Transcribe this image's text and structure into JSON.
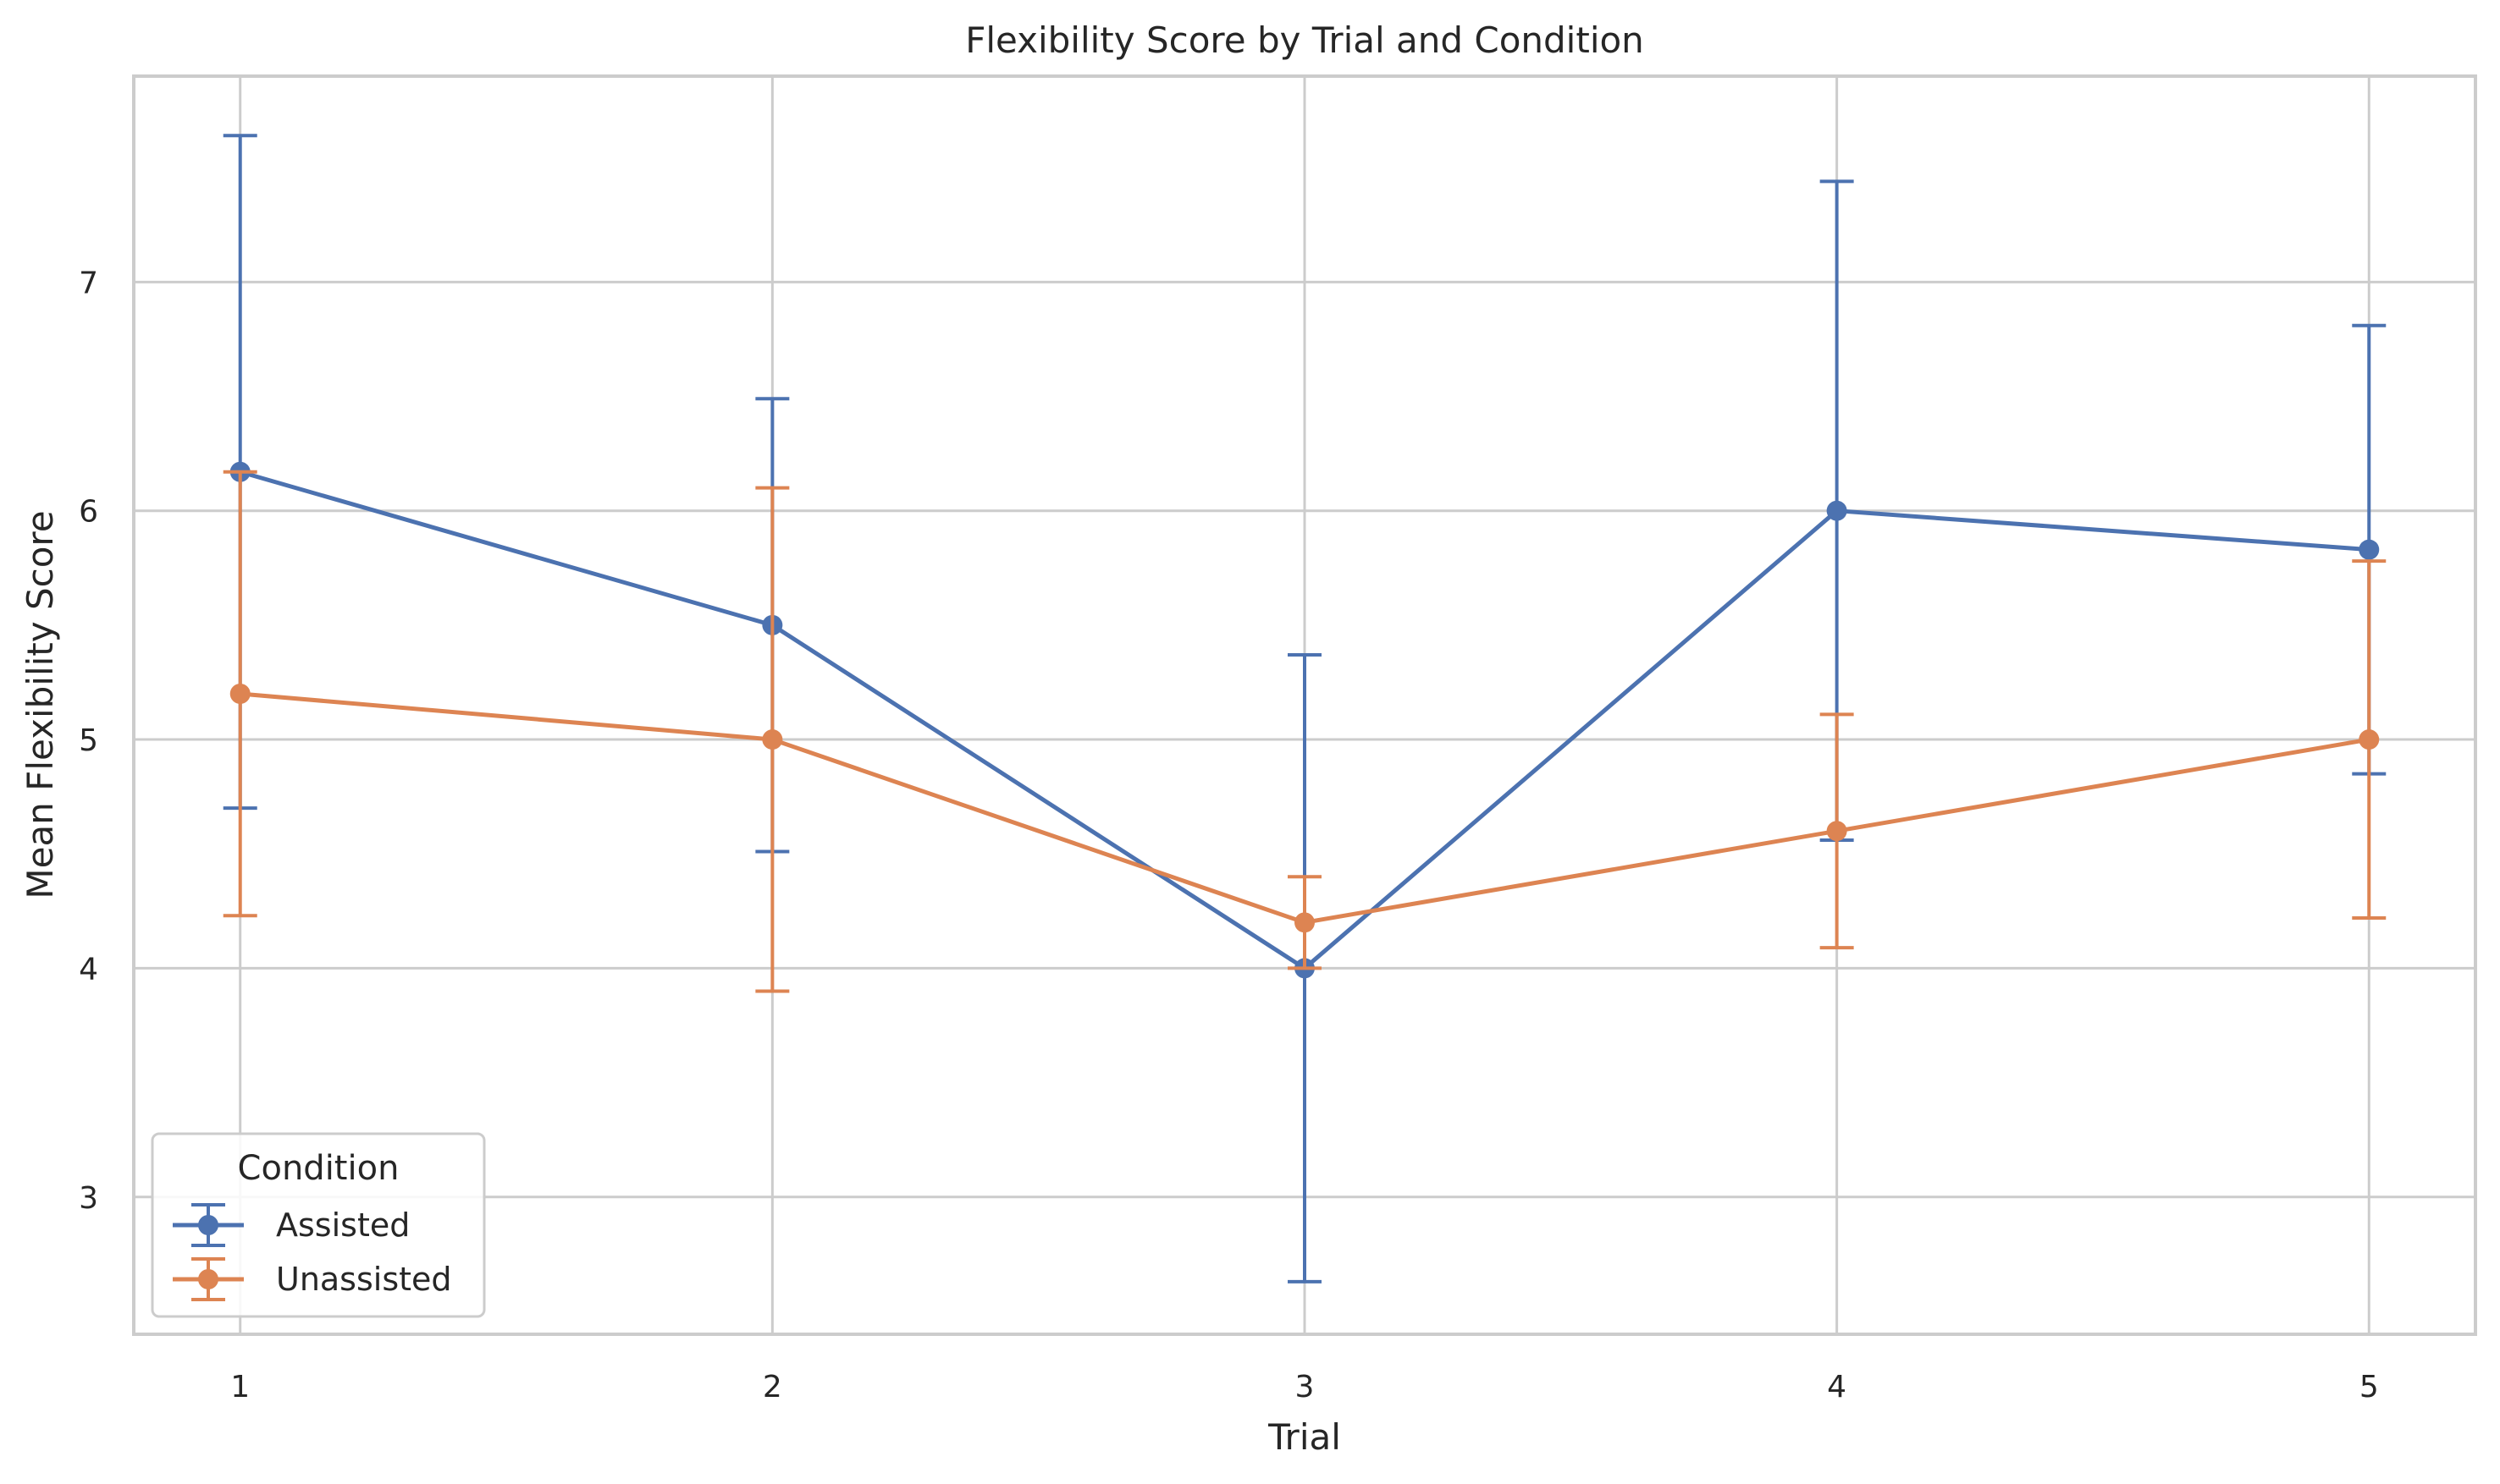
{
  "chart_data": {
    "type": "line",
    "title": "Flexibility Score by Trial and Condition",
    "xlabel": "Trial",
    "ylabel": "Mean Flexibility Score",
    "x": [
      1,
      2,
      3,
      4,
      5
    ],
    "x_ticks": [
      "1",
      "2",
      "3",
      "4",
      "5"
    ],
    "y_ticks": [
      "3",
      "4",
      "5",
      "6",
      "7"
    ],
    "xlim": [
      0.8,
      5.2
    ],
    "ylim": [
      2.4,
      7.9
    ],
    "grid": true,
    "legend": {
      "title": "Condition",
      "placement": "lower-left"
    },
    "series": [
      {
        "name": "Assisted",
        "color": "#4c72b0",
        "values": [
          6.17,
          5.5,
          4.0,
          6.0,
          5.83
        ],
        "error": [
          1.47,
          0.99,
          1.37,
          1.44,
          0.98
        ]
      },
      {
        "name": "Unassisted",
        "color": "#dd8452",
        "values": [
          5.2,
          5.0,
          4.2,
          4.6,
          5.0
        ],
        "error": [
          0.97,
          1.1,
          0.2,
          0.51,
          0.78
        ]
      }
    ]
  }
}
